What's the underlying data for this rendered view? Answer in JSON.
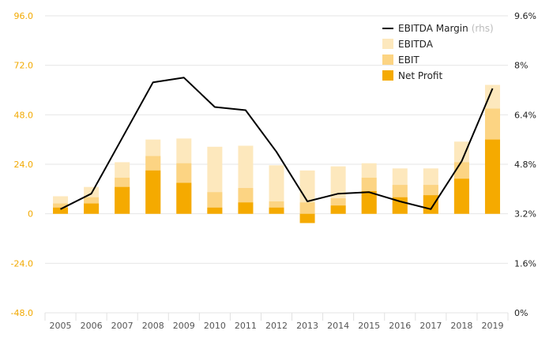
{
  "chart_data": {
    "type": "bar",
    "subtype": "stacked-bar-with-line",
    "categories": [
      "2005",
      "2006",
      "2007",
      "2008",
      "2009",
      "2010",
      "2011",
      "2012",
      "2013",
      "2014",
      "2015",
      "2016",
      "2017",
      "2018",
      "2019"
    ],
    "series": [
      {
        "name": "Net Profit",
        "axis": "left",
        "color": "#f5aa00",
        "values": [
          3.0,
          5.0,
          13.0,
          21.0,
          15.0,
          3.0,
          5.5,
          3.0,
          -4.5,
          4.0,
          11.0,
          8.0,
          9.0,
          17.0,
          36.0
        ]
      },
      {
        "name": "EBIT",
        "axis": "left",
        "color": "#fcd483",
        "values": [
          5.0,
          8.0,
          17.5,
          28.0,
          24.5,
          10.5,
          12.5,
          6.0,
          5.5,
          7.5,
          17.5,
          14.0,
          14.0,
          25.0,
          51.0
        ]
      },
      {
        "name": "EBITDA",
        "axis": "left",
        "color": "#fde8bd",
        "values": [
          8.5,
          13.0,
          25.0,
          36.0,
          36.5,
          32.5,
          33.0,
          23.5,
          21.0,
          23.0,
          24.5,
          22.0,
          22.0,
          35.0,
          62.5
        ]
      },
      {
        "name": "EBITDA Margin",
        "name_suffix": "(rhs)",
        "axis": "right",
        "type": "line",
        "color": "#000000",
        "values": [
          3.35,
          3.85,
          5.65,
          7.45,
          7.6,
          6.65,
          6.55,
          5.2,
          3.6,
          3.85,
          3.9,
          3.6,
          3.35,
          4.9,
          7.25
        ]
      }
    ],
    "yleft": {
      "min": -48,
      "max": 96,
      "ticks": [
        "96.0",
        "72.0",
        "48.0",
        "24.0",
        "0",
        "-24.0",
        "-48.0"
      ],
      "color": "#f2a900"
    },
    "yright": {
      "min": 0,
      "max": 9.6,
      "ticks": [
        "9.6%",
        "8%",
        "6.4%",
        "4.8%",
        "3.2%",
        "1.6%",
        "0%"
      ]
    },
    "grid": true,
    "legend_position": "top-right",
    "title": "",
    "xlabel": "",
    "ylabel": ""
  }
}
